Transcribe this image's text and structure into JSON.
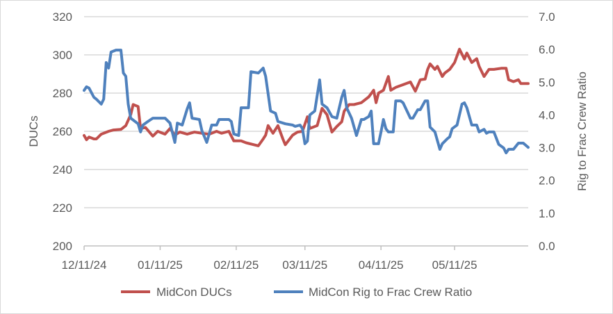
{
  "chart_data": {
    "type": "line",
    "xlabel": "",
    "ylabel": "DUCs",
    "y2label": "Rig to Frac Crew Ratio",
    "xlim": [
      "2024-12-11",
      "2025-06-10"
    ],
    "ylim": [
      200,
      320
    ],
    "y2lim": [
      0,
      7
    ],
    "grid": true,
    "legend": "bottom",
    "x_tick_labels": [
      "12/11/24",
      "01/11/25",
      "02/11/25",
      "03/11/25",
      "04/11/25",
      "05/11/25"
    ],
    "x_ticks": [
      "2024-12-11",
      "2025-01-11",
      "2025-02-11",
      "2025-03-11",
      "2025-04-11",
      "2025-05-11"
    ],
    "y_tick_labels": [
      "200",
      "220",
      "240",
      "260",
      "280",
      "300",
      "320"
    ],
    "y2_tick_labels": [
      "0.0",
      "1.0",
      "2.0",
      "3.0",
      "4.0",
      "5.0",
      "6.0",
      "7.0"
    ],
    "series": [
      {
        "name": "MidCon DUCs",
        "axis": "left",
        "color": "#c0504d",
        "points": [
          [
            "2024-12-11",
            257.8
          ],
          [
            "2024-12-12",
            255.6
          ],
          [
            "2024-12-13",
            257
          ],
          [
            "2024-12-15",
            256
          ],
          [
            "2024-12-16",
            256
          ],
          [
            "2024-12-18",
            258.5
          ],
          [
            "2024-12-21",
            260
          ],
          [
            "2024-12-23",
            260.7
          ],
          [
            "2024-12-26",
            261
          ],
          [
            "2024-12-28",
            263
          ],
          [
            "2024-12-30",
            268.7
          ],
          [
            "2024-12-31",
            274
          ],
          [
            "2025-01-02",
            273
          ],
          [
            "2025-01-03",
            261.5
          ],
          [
            "2025-01-05",
            262
          ],
          [
            "2025-01-08",
            257.5
          ],
          [
            "2025-01-10",
            260
          ],
          [
            "2025-01-13",
            258.5
          ],
          [
            "2025-01-15",
            261.5
          ],
          [
            "2025-01-17",
            258
          ],
          [
            "2025-01-19",
            259.6
          ],
          [
            "2025-01-22",
            258.5
          ],
          [
            "2025-01-25",
            259.6
          ],
          [
            "2025-01-28",
            259
          ],
          [
            "2025-01-31",
            258.5
          ],
          [
            "2025-02-03",
            260
          ],
          [
            "2025-02-05",
            259
          ],
          [
            "2025-02-08",
            260
          ],
          [
            "2025-02-10",
            255
          ],
          [
            "2025-02-13",
            255
          ],
          [
            "2025-02-15",
            254
          ],
          [
            "2025-02-20",
            252.4
          ],
          [
            "2025-02-22",
            256
          ],
          [
            "2025-02-23",
            258
          ],
          [
            "2025-02-24",
            263
          ],
          [
            "2025-02-26",
            259
          ],
          [
            "2025-02-28",
            263
          ],
          [
            "2025-03-02",
            256
          ],
          [
            "2025-03-03",
            253
          ],
          [
            "2025-03-06",
            258
          ],
          [
            "2025-03-08",
            259.6
          ],
          [
            "2025-03-10",
            260
          ],
          [
            "2025-03-12",
            267.6
          ],
          [
            "2025-03-13",
            261.5
          ],
          [
            "2025-03-16",
            263
          ],
          [
            "2025-03-18",
            272
          ],
          [
            "2025-03-20",
            268.7
          ],
          [
            "2025-03-22",
            259.6
          ],
          [
            "2025-03-24",
            262.5
          ],
          [
            "2025-03-26",
            265
          ],
          [
            "2025-03-27",
            270.5
          ],
          [
            "2025-03-29",
            274
          ],
          [
            "2025-03-31",
            274
          ],
          [
            "2025-04-03",
            275
          ],
          [
            "2025-04-06",
            278
          ],
          [
            "2025-04-08",
            281.5
          ],
          [
            "2025-04-09",
            275
          ],
          [
            "2025-04-10",
            280
          ],
          [
            "2025-04-12",
            281.5
          ],
          [
            "2025-04-14",
            288.7
          ],
          [
            "2025-04-15",
            281.5
          ],
          [
            "2025-04-17",
            283
          ],
          [
            "2025-04-20",
            284.4
          ],
          [
            "2025-04-23",
            285.8
          ],
          [
            "2025-04-25",
            281
          ],
          [
            "2025-04-27",
            287
          ],
          [
            "2025-04-29",
            287.3
          ],
          [
            "2025-04-30",
            292.4
          ],
          [
            "2025-05-01",
            295.3
          ],
          [
            "2025-05-03",
            292.4
          ],
          [
            "2025-05-04",
            294
          ],
          [
            "2025-05-06",
            288.7
          ],
          [
            "2025-05-07",
            290.5
          ],
          [
            "2025-05-09",
            292.4
          ],
          [
            "2025-05-11",
            296
          ],
          [
            "2025-05-13",
            303
          ],
          [
            "2025-05-15",
            297.8
          ],
          [
            "2025-05-16",
            301
          ],
          [
            "2025-05-18",
            296
          ],
          [
            "2025-05-20",
            298
          ],
          [
            "2025-05-21",
            294
          ],
          [
            "2025-05-23",
            288.7
          ],
          [
            "2025-05-25",
            292.4
          ],
          [
            "2025-05-27",
            292.4
          ],
          [
            "2025-05-30",
            293
          ],
          [
            "2025-06-01",
            293
          ],
          [
            "2025-06-02",
            287
          ],
          [
            "2025-06-04",
            286
          ],
          [
            "2025-06-06",
            287
          ],
          [
            "2025-06-07",
            285
          ],
          [
            "2025-06-10",
            285
          ]
        ]
      },
      {
        "name": "MidCon Rig to Frac Crew Ratio",
        "axis": "right",
        "color": "#4f81bd",
        "points": [
          [
            "2024-12-11",
            4.75
          ],
          [
            "2024-12-12",
            4.86
          ],
          [
            "2024-12-13",
            4.82
          ],
          [
            "2024-12-15",
            4.54
          ],
          [
            "2024-12-16",
            4.48
          ],
          [
            "2024-12-18",
            4.33
          ],
          [
            "2024-12-19",
            4.48
          ],
          [
            "2024-12-20",
            5.6
          ],
          [
            "2024-12-21",
            5.43
          ],
          [
            "2024-12-22",
            5.92
          ],
          [
            "2024-12-24",
            5.98
          ],
          [
            "2024-12-26",
            5.98
          ],
          [
            "2024-12-27",
            5.28
          ],
          [
            "2024-12-28",
            5.18
          ],
          [
            "2024-12-29",
            4.33
          ],
          [
            "2024-12-30",
            3.9
          ],
          [
            "2025-01-02",
            3.73
          ],
          [
            "2025-01-03",
            3.48
          ],
          [
            "2025-01-04",
            3.69
          ],
          [
            "2025-01-06",
            3.8
          ],
          [
            "2025-01-08",
            3.9
          ],
          [
            "2025-01-11",
            3.9
          ],
          [
            "2025-01-13",
            3.9
          ],
          [
            "2025-01-15",
            3.75
          ],
          [
            "2025-01-17",
            3.16
          ],
          [
            "2025-01-18",
            3.75
          ],
          [
            "2025-01-20",
            3.69
          ],
          [
            "2025-01-22",
            4.18
          ],
          [
            "2025-01-23",
            4.37
          ],
          [
            "2025-01-24",
            3.9
          ],
          [
            "2025-01-27",
            3.86
          ],
          [
            "2025-01-28",
            3.52
          ],
          [
            "2025-01-30",
            3.16
          ],
          [
            "2025-02-01",
            3.69
          ],
          [
            "2025-02-03",
            3.69
          ],
          [
            "2025-02-04",
            3.86
          ],
          [
            "2025-02-08",
            3.86
          ],
          [
            "2025-02-09",
            3.8
          ],
          [
            "2025-02-10",
            3.42
          ],
          [
            "2025-02-12",
            3.37
          ],
          [
            "2025-02-13",
            4.22
          ],
          [
            "2025-02-16",
            4.22
          ],
          [
            "2025-02-17",
            5.32
          ],
          [
            "2025-02-20",
            5.28
          ],
          [
            "2025-02-22",
            5.43
          ],
          [
            "2025-02-23",
            5.18
          ],
          [
            "2025-02-25",
            4.12
          ],
          [
            "2025-02-27",
            4.05
          ],
          [
            "2025-02-28",
            3.8
          ],
          [
            "2025-03-03",
            3.73
          ],
          [
            "2025-03-06",
            3.69
          ],
          [
            "2025-03-07",
            3.65
          ],
          [
            "2025-03-09",
            3.69
          ],
          [
            "2025-03-10",
            3.58
          ],
          [
            "2025-03-11",
            3.12
          ],
          [
            "2025-03-12",
            3.2
          ],
          [
            "2025-03-13",
            4.0
          ],
          [
            "2025-03-15",
            4.12
          ],
          [
            "2025-03-17",
            5.07
          ],
          [
            "2025-03-18",
            4.33
          ],
          [
            "2025-03-20",
            4.22
          ],
          [
            "2025-03-22",
            3.95
          ],
          [
            "2025-03-24",
            3.9
          ],
          [
            "2025-03-26",
            4.54
          ],
          [
            "2025-03-27",
            4.75
          ],
          [
            "2025-03-28",
            4.22
          ],
          [
            "2025-03-30",
            3.9
          ],
          [
            "2025-04-01",
            3.37
          ],
          [
            "2025-04-03",
            3.86
          ],
          [
            "2025-04-04",
            3.86
          ],
          [
            "2025-04-06",
            3.95
          ],
          [
            "2025-04-07",
            4.12
          ],
          [
            "2025-04-08",
            3.12
          ],
          [
            "2025-04-10",
            3.12
          ],
          [
            "2025-04-11",
            3.48
          ],
          [
            "2025-04-12",
            3.86
          ],
          [
            "2025-04-13",
            3.58
          ],
          [
            "2025-04-14",
            3.48
          ],
          [
            "2025-04-16",
            3.48
          ],
          [
            "2025-04-17",
            4.43
          ],
          [
            "2025-04-19",
            4.43
          ],
          [
            "2025-04-20",
            4.37
          ],
          [
            "2025-04-23",
            3.9
          ],
          [
            "2025-04-24",
            3.9
          ],
          [
            "2025-04-26",
            4.16
          ],
          [
            "2025-04-27",
            4.16
          ],
          [
            "2025-04-29",
            4.43
          ],
          [
            "2025-04-30",
            4.43
          ],
          [
            "2025-05-01",
            3.63
          ],
          [
            "2025-05-03",
            3.48
          ],
          [
            "2025-05-05",
            2.95
          ],
          [
            "2025-05-06",
            3.12
          ],
          [
            "2025-05-08",
            3.27
          ],
          [
            "2025-05-09",
            3.33
          ],
          [
            "2025-05-10",
            3.58
          ],
          [
            "2025-05-12",
            3.69
          ],
          [
            "2025-05-14",
            4.33
          ],
          [
            "2025-05-15",
            4.37
          ],
          [
            "2025-05-16",
            4.22
          ],
          [
            "2025-05-18",
            3.69
          ],
          [
            "2025-05-20",
            3.69
          ],
          [
            "2025-05-21",
            3.48
          ],
          [
            "2025-05-23",
            3.56
          ],
          [
            "2025-05-24",
            3.44
          ],
          [
            "2025-05-25",
            3.48
          ],
          [
            "2025-05-27",
            3.48
          ],
          [
            "2025-05-29",
            3.1
          ],
          [
            "2025-05-31",
            2.99
          ],
          [
            "2025-06-01",
            2.84
          ],
          [
            "2025-06-02",
            2.95
          ],
          [
            "2025-06-04",
            2.95
          ],
          [
            "2025-06-06",
            3.14
          ],
          [
            "2025-06-08",
            3.14
          ],
          [
            "2025-06-10",
            3.01
          ]
        ]
      }
    ]
  }
}
